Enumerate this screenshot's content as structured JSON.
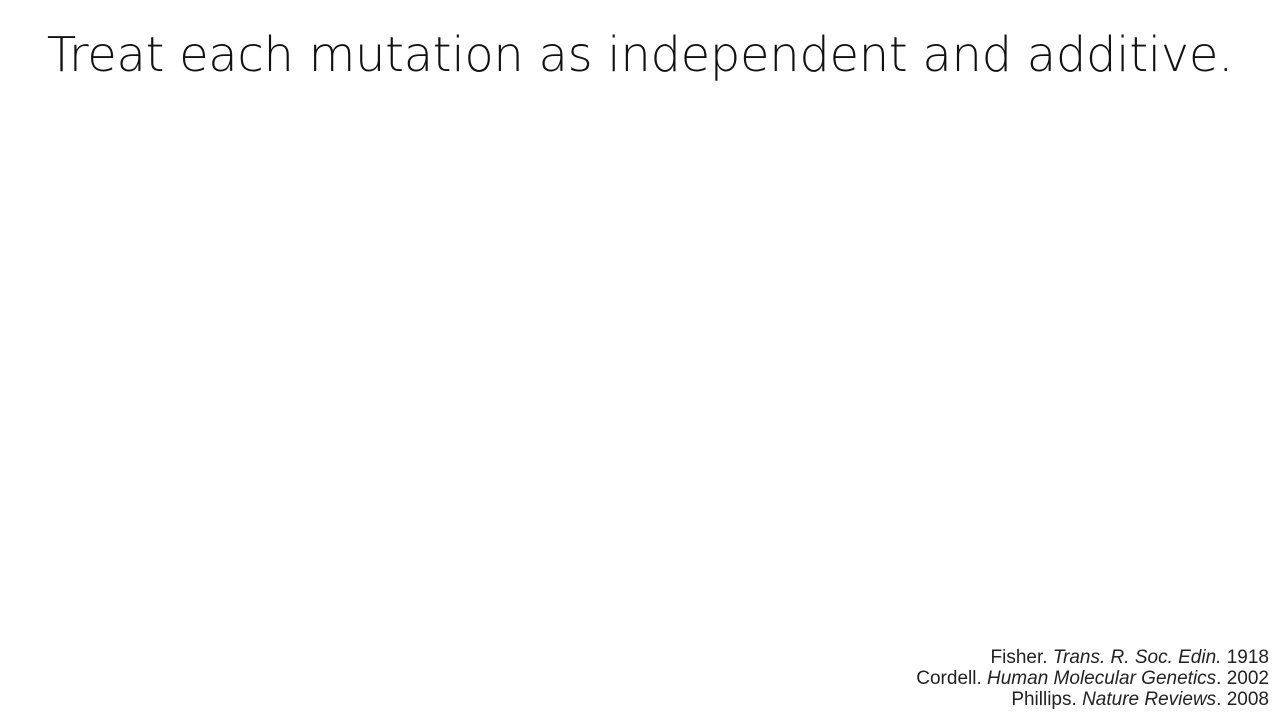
{
  "slide": {
    "title": "Treat each mutation as independent and additive.",
    "references": [
      {
        "author": "Fisher. ",
        "journal": "Trans. R. Soc. Edin.",
        "year": " 1918"
      },
      {
        "author": "Cordell. ",
        "journal": "Human Molecular Genetics",
        "year": ". 2002"
      },
      {
        "author": "Phillips. ",
        "journal": "Nature Reviews",
        "year": ". 2008"
      }
    ]
  }
}
